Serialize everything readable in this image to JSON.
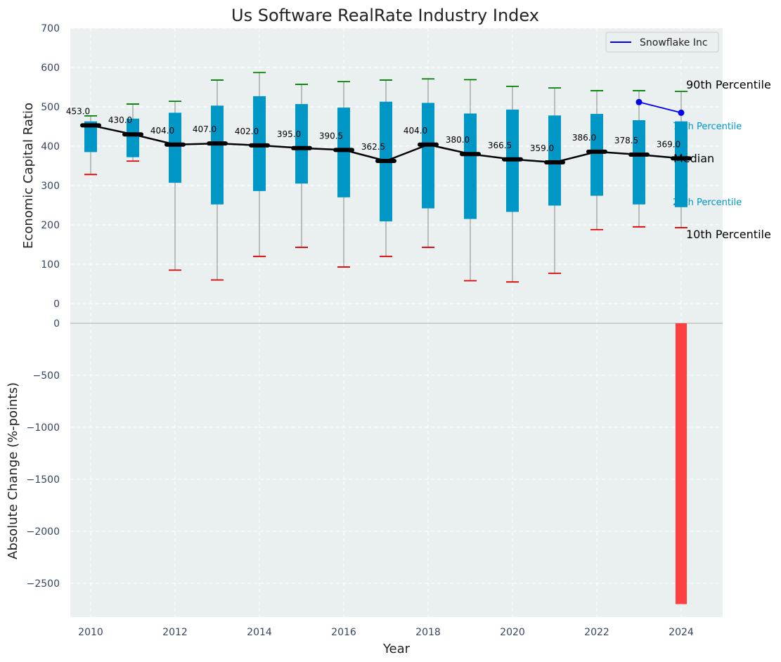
{
  "chart_data": [
    {
      "type": "box",
      "title": "Us Software RealRate Industry Index",
      "ylabel": "Economic Capital Ratio",
      "ylim": [
        0,
        700
      ],
      "y_ticks": [
        "0",
        "100",
        "200",
        "300",
        "400",
        "500",
        "600",
        "700"
      ],
      "grid": true,
      "legend_position": "top-right",
      "colors": {
        "background": "#eaeff0",
        "box": "#0097c7",
        "median_line": "#000000",
        "p90": "#008000",
        "p10": "#e00000",
        "company": "#0000ee",
        "whisker": "#888888"
      },
      "years": [
        2010,
        2011,
        2012,
        2013,
        2014,
        2015,
        2016,
        2017,
        2018,
        2019,
        2020,
        2021,
        2022,
        2023,
        2024
      ],
      "p10": [
        328,
        362,
        85,
        60,
        120,
        143,
        93,
        120,
        143,
        58,
        55,
        77,
        188,
        195,
        193
      ],
      "p25": [
        385,
        372,
        307,
        252,
        286,
        305,
        270,
        209,
        242,
        215,
        233,
        249,
        274,
        252,
        245
      ],
      "median": [
        453.0,
        430.0,
        404.0,
        407.0,
        402.0,
        395.0,
        390.5,
        362.5,
        404.0,
        380.0,
        366.5,
        359.0,
        386.0,
        378.5,
        369.0
      ],
      "median_labels": [
        "453.0",
        "430.0",
        "404.0",
        "407.0",
        "402.0",
        "395.0",
        "390.5",
        "362.5",
        "404.0",
        "380.0",
        "366.5",
        "359.0",
        "386.0",
        "378.5",
        "369.0"
      ],
      "p75": [
        463,
        470,
        485,
        503,
        527,
        507,
        498,
        513,
        510,
        483,
        493,
        478,
        482,
        466,
        463
      ],
      "p90": [
        477,
        507,
        514,
        568,
        587,
        557,
        564,
        568,
        571,
        569,
        552,
        548,
        541,
        541,
        539
      ],
      "series": [
        {
          "name": "Snowflake Inc",
          "x": [
            2023,
            2024
          ],
          "values": [
            512,
            485
          ]
        }
      ],
      "legend": [
        "Snowflake Inc"
      ],
      "percentile_labels": {
        "p90": "90th Percentile",
        "p75": "75th Percentile",
        "median": "Median",
        "p25": "25th Percentile",
        "p10": "10th Percentile"
      }
    },
    {
      "type": "bar",
      "ylabel": "Absolute Change (%-points)",
      "xlabel": "Year",
      "ylim": [
        -2830,
        0
      ],
      "y_ticks": [
        "0",
        "−500",
        "−1000",
        "−1500",
        "−2000",
        "−2500"
      ],
      "x_ticks": [
        "2010",
        "2012",
        "2014",
        "2016",
        "2018",
        "2020",
        "2022",
        "2024"
      ],
      "grid": true,
      "bar_color": "#ff4040",
      "categories": [
        2024
      ],
      "values": [
        -2700
      ]
    }
  ]
}
